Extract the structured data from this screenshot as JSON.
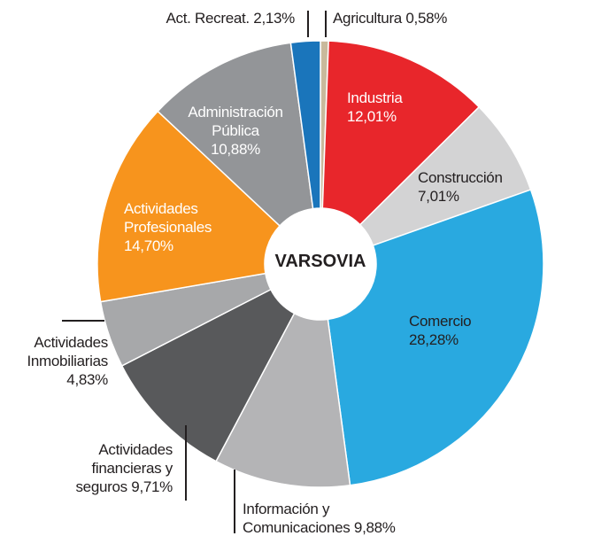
{
  "chart_data": {
    "type": "donut",
    "center_label": "VARSOVIA",
    "categories": [
      "Agricultura",
      "Industria",
      "Construcción",
      "Comercio",
      "Información y Comunicaciones",
      "Actividades financieras y seguros",
      "Actividades Inmobiliarias",
      "Actividades Profesionales",
      "Administración Pública",
      "Act. Recreat."
    ],
    "values": [
      0.58,
      12.01,
      7.01,
      28.28,
      9.88,
      9.71,
      4.83,
      14.7,
      10.88,
      2.13
    ],
    "value_labels": [
      "0,58%",
      "12,01%",
      "7,01%",
      "28,28%",
      "9,88%",
      "9,71%",
      "4,83%",
      "14,70%",
      "10,88%",
      "2,13%"
    ],
    "colors": [
      "#c9b99c",
      "#e8262b",
      "#d3d3d4",
      "#29a9e0",
      "#b4b4b6",
      "#58595b",
      "#a7a8aa",
      "#f7941d",
      "#939598",
      "#1a75bb"
    ]
  }
}
